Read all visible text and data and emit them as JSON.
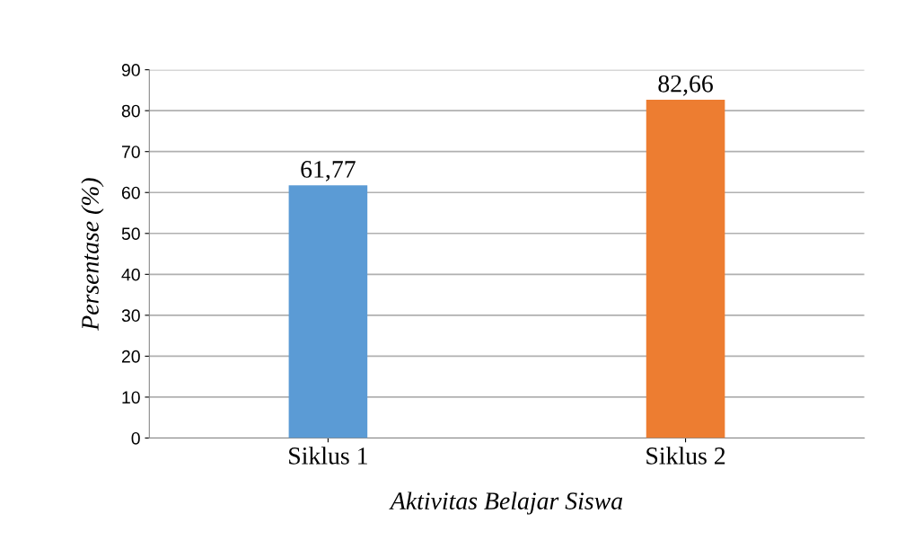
{
  "chart_data": {
    "type": "bar",
    "xlabel": "Aktivitas Belajar Siswa",
    "ylabel": "Persentase (%)",
    "categories": [
      "Siklus 1",
      "Siklus 2"
    ],
    "values": [
      61.77,
      82.66
    ],
    "colors": [
      "#5b9bd5",
      "#ed7d31"
    ],
    "value_labels": [
      "61,77",
      "82,66"
    ],
    "ylim": [
      0,
      90
    ],
    "yticks": [
      0,
      10,
      20,
      30,
      40,
      50,
      60,
      70,
      80,
      90
    ],
    "grid": "y",
    "legend": false
  }
}
